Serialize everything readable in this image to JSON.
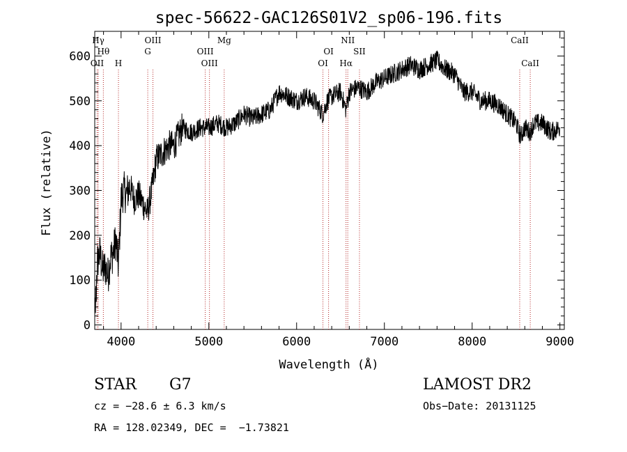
{
  "chart_data": {
    "type": "line",
    "title": "spec-56622-GAC126S01V2_sp06-196.fits",
    "xlabel": "Wavelength (Å)",
    "ylabel": "Flux (relative)",
    "xlim": [
      3700,
      9050
    ],
    "ylim": [
      -10,
      655
    ],
    "x_ticks": [
      4000,
      5000,
      6000,
      7000,
      8000,
      9000
    ],
    "y_ticks": [
      0,
      100,
      200,
      300,
      400,
      500,
      600
    ],
    "grid": false,
    "series": [
      {
        "x": [
          3700,
          3730,
          3760,
          3790,
          3820,
          3850,
          3880,
          3910,
          3940,
          3970,
          4000,
          4030,
          4060,
          4100,
          4150,
          4200,
          4250,
          4300,
          4350,
          4400,
          4450,
          4500,
          4550,
          4600,
          4700,
          4800,
          4900,
          5000,
          5100,
          5200,
          5300,
          5400,
          5500,
          5600,
          5700,
          5800,
          5900,
          6000,
          6100,
          6200,
          6300,
          6350,
          6400,
          6500,
          6563,
          6600,
          6700,
          6800,
          6900,
          7000,
          7100,
          7200,
          7300,
          7400,
          7500,
          7600,
          7700,
          7800,
          7900,
          8000,
          8100,
          8200,
          8300,
          8400,
          8500,
          8550,
          8600,
          8662,
          8700,
          8800,
          8900,
          9000
        ],
        "y": [
          20,
          140,
          160,
          120,
          130,
          110,
          150,
          160,
          190,
          130,
          280,
          300,
          290,
          310,
          280,
          290,
          270,
          250,
          300,
          370,
          380,
          390,
          400,
          400,
          440,
          430,
          440,
          440,
          450,
          440,
          450,
          470,
          460,
          470,
          480,
          520,
          510,
          500,
          510,
          500,
          470,
          500,
          510,
          520,
          480,
          520,
          530,
          520,
          540,
          550,
          560,
          570,
          580,
          570,
          580,
          590,
          570,
          560,
          520,
          520,
          500,
          500,
          490,
          470,
          450,
          420,
          440,
          430,
          450,
          450,
          430,
          440
        ]
      }
    ],
    "lines": [
      {
        "label": "Hγ",
        "x": 3740,
        "row": 1
      },
      {
        "label": "Hθ",
        "x": 3798,
        "row": 2
      },
      {
        "label": "OII",
        "x": 3727,
        "row": 3
      },
      {
        "label": "H",
        "x": 3970,
        "row": 3
      },
      {
        "label": "OIII",
        "x": 4363,
        "row": 1
      },
      {
        "label": "G",
        "x": 4304,
        "row": 2
      },
      {
        "label": "OIII",
        "x": 4959,
        "row": 2
      },
      {
        "label": "OIII",
        "x": 5007,
        "row": 3
      },
      {
        "label": "Mg",
        "x": 5175,
        "row": 1
      },
      {
        "label": "OI",
        "x": 6364,
        "row": 2
      },
      {
        "label": "OI",
        "x": 6300,
        "row": 3
      },
      {
        "label": "NII",
        "x": 6583,
        "row": 1
      },
      {
        "label": "Hα",
        "x": 6563,
        "row": 3
      },
      {
        "label": "SII",
        "x": 6716,
        "row": 2
      },
      {
        "label": "CaII",
        "x": 8542,
        "row": 1
      },
      {
        "label": "CaII",
        "x": 8662,
        "row": 3
      }
    ]
  },
  "info": {
    "class": "STAR",
    "subclass": "G7",
    "survey": "LAMOST DR2",
    "cz": "cz = −28.6 ± 6.3 km/s",
    "obs_date": "Obs−Date: 20131125",
    "radec": "RA = 128.02349, DEC =  −1.73821"
  }
}
